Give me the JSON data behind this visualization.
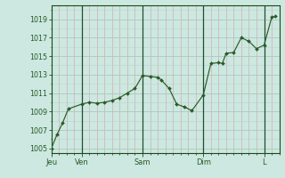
{
  "background_color": "#cce8e0",
  "plot_bg_color": "#cce8e0",
  "line_color": "#2a5a2a",
  "marker_color": "#2a5a2a",
  "grid_color_major": "#aac8c0",
  "grid_color_minor_x": "#d4a0a0",
  "grid_color_minor_y": "#b8d4d0",
  "axis_color": "#1a4a1a",
  "tick_label_color": "#2a5a2a",
  "ylim": [
    1004.5,
    1020.5
  ],
  "yticks": [
    1005,
    1007,
    1009,
    1011,
    1013,
    1015,
    1017,
    1019
  ],
  "x_day_positions": [
    0,
    16,
    48,
    80,
    112
  ],
  "x_day_labels": [
    "Jeu",
    "Ven",
    "Sam",
    "Dim",
    "L"
  ],
  "x_vline_positions": [
    16,
    48,
    80,
    112
  ],
  "xlim": [
    0,
    120
  ],
  "data_x": [
    0,
    3,
    6,
    9,
    16,
    20,
    24,
    28,
    32,
    36,
    40,
    44,
    48,
    52,
    56,
    58,
    62,
    66,
    70,
    74,
    80,
    84,
    88,
    90,
    92,
    96,
    100,
    104,
    108,
    112,
    116,
    118
  ],
  "data_y": [
    1005.0,
    1006.5,
    1007.8,
    1009.3,
    1009.8,
    1010.0,
    1009.9,
    1010.0,
    1010.2,
    1010.5,
    1011.0,
    1011.5,
    1012.9,
    1012.8,
    1012.7,
    1012.4,
    1011.5,
    1009.8,
    1009.5,
    1009.1,
    1010.8,
    1014.2,
    1014.3,
    1014.2,
    1015.3,
    1015.4,
    1017.0,
    1016.6,
    1015.8,
    1016.2,
    1019.2,
    1019.3
  ]
}
